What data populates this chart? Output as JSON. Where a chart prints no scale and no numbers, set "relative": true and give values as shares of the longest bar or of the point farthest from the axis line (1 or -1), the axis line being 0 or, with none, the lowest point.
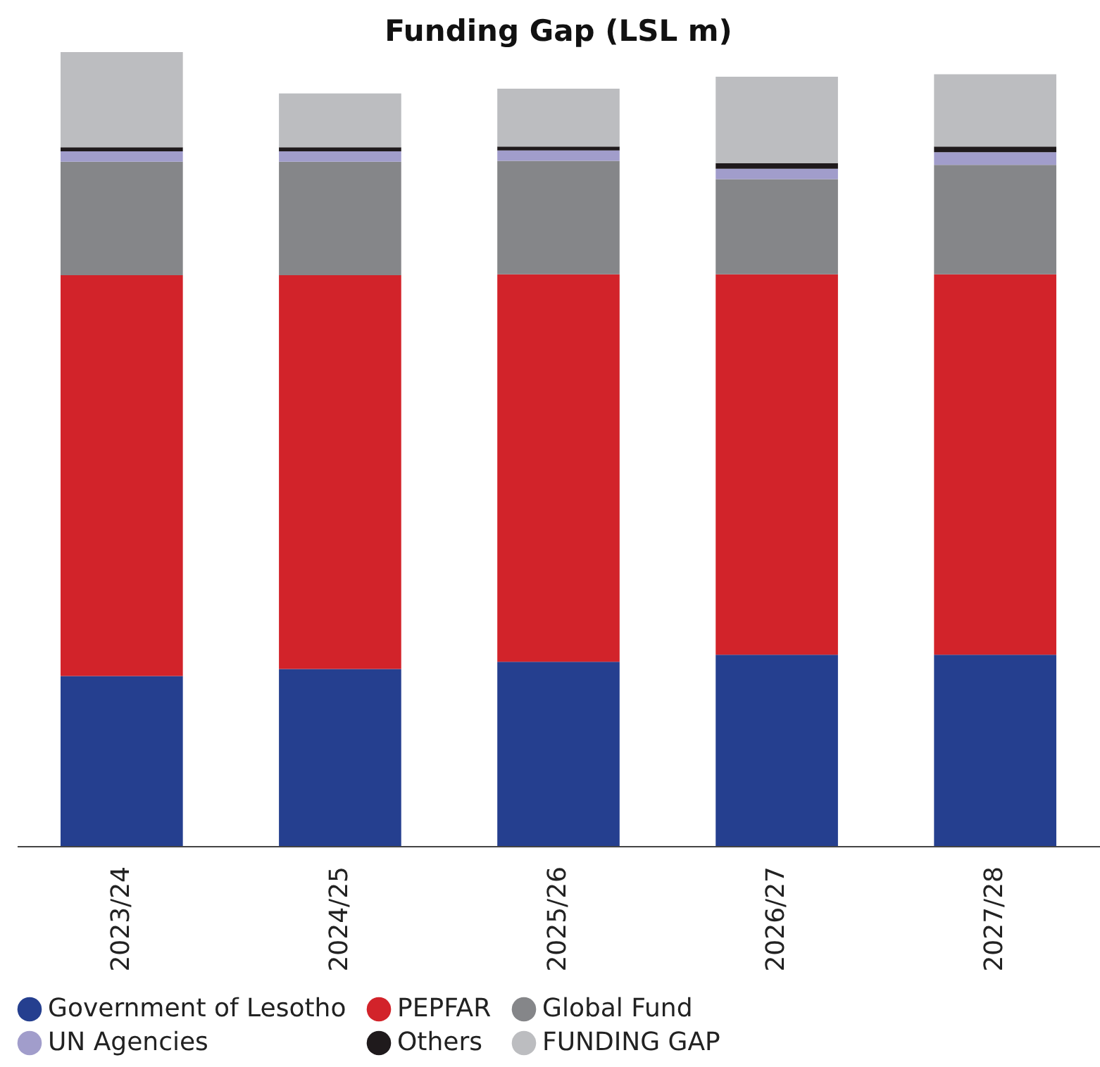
{
  "chart_data": {
    "type": "bar",
    "title": "Funding Gap (LSL m)",
    "stacked": true,
    "relative": true,
    "legend": "bottom",
    "categories": [
      "2023/24",
      "2024/25",
      "2025/26",
      "2026/27",
      "2027/28"
    ],
    "series": [
      {
        "name": "Government of Lesotho",
        "color": "#253f8f",
        "values": [
          0.214,
          0.223,
          0.232,
          0.241,
          0.241
        ]
      },
      {
        "name": "PEPFAR",
        "color": "#d2232a",
        "values": [
          0.505,
          0.496,
          0.488,
          0.479,
          0.479
        ]
      },
      {
        "name": "Global Fund",
        "color": "#858689",
        "values": [
          0.143,
          0.143,
          0.143,
          0.12,
          0.138
        ]
      },
      {
        "name": "UN Agencies",
        "color": "#a19dcb",
        "values": [
          0.013,
          0.013,
          0.013,
          0.013,
          0.016
        ]
      },
      {
        "name": "Others",
        "color": "#1f1a1c",
        "values": [
          0.005,
          0.005,
          0.005,
          0.007,
          0.007
        ]
      },
      {
        "name": "FUNDING GAP",
        "color": "#bcbdc0",
        "values": [
          0.12,
          0.068,
          0.073,
          0.109,
          0.091
        ]
      }
    ]
  }
}
